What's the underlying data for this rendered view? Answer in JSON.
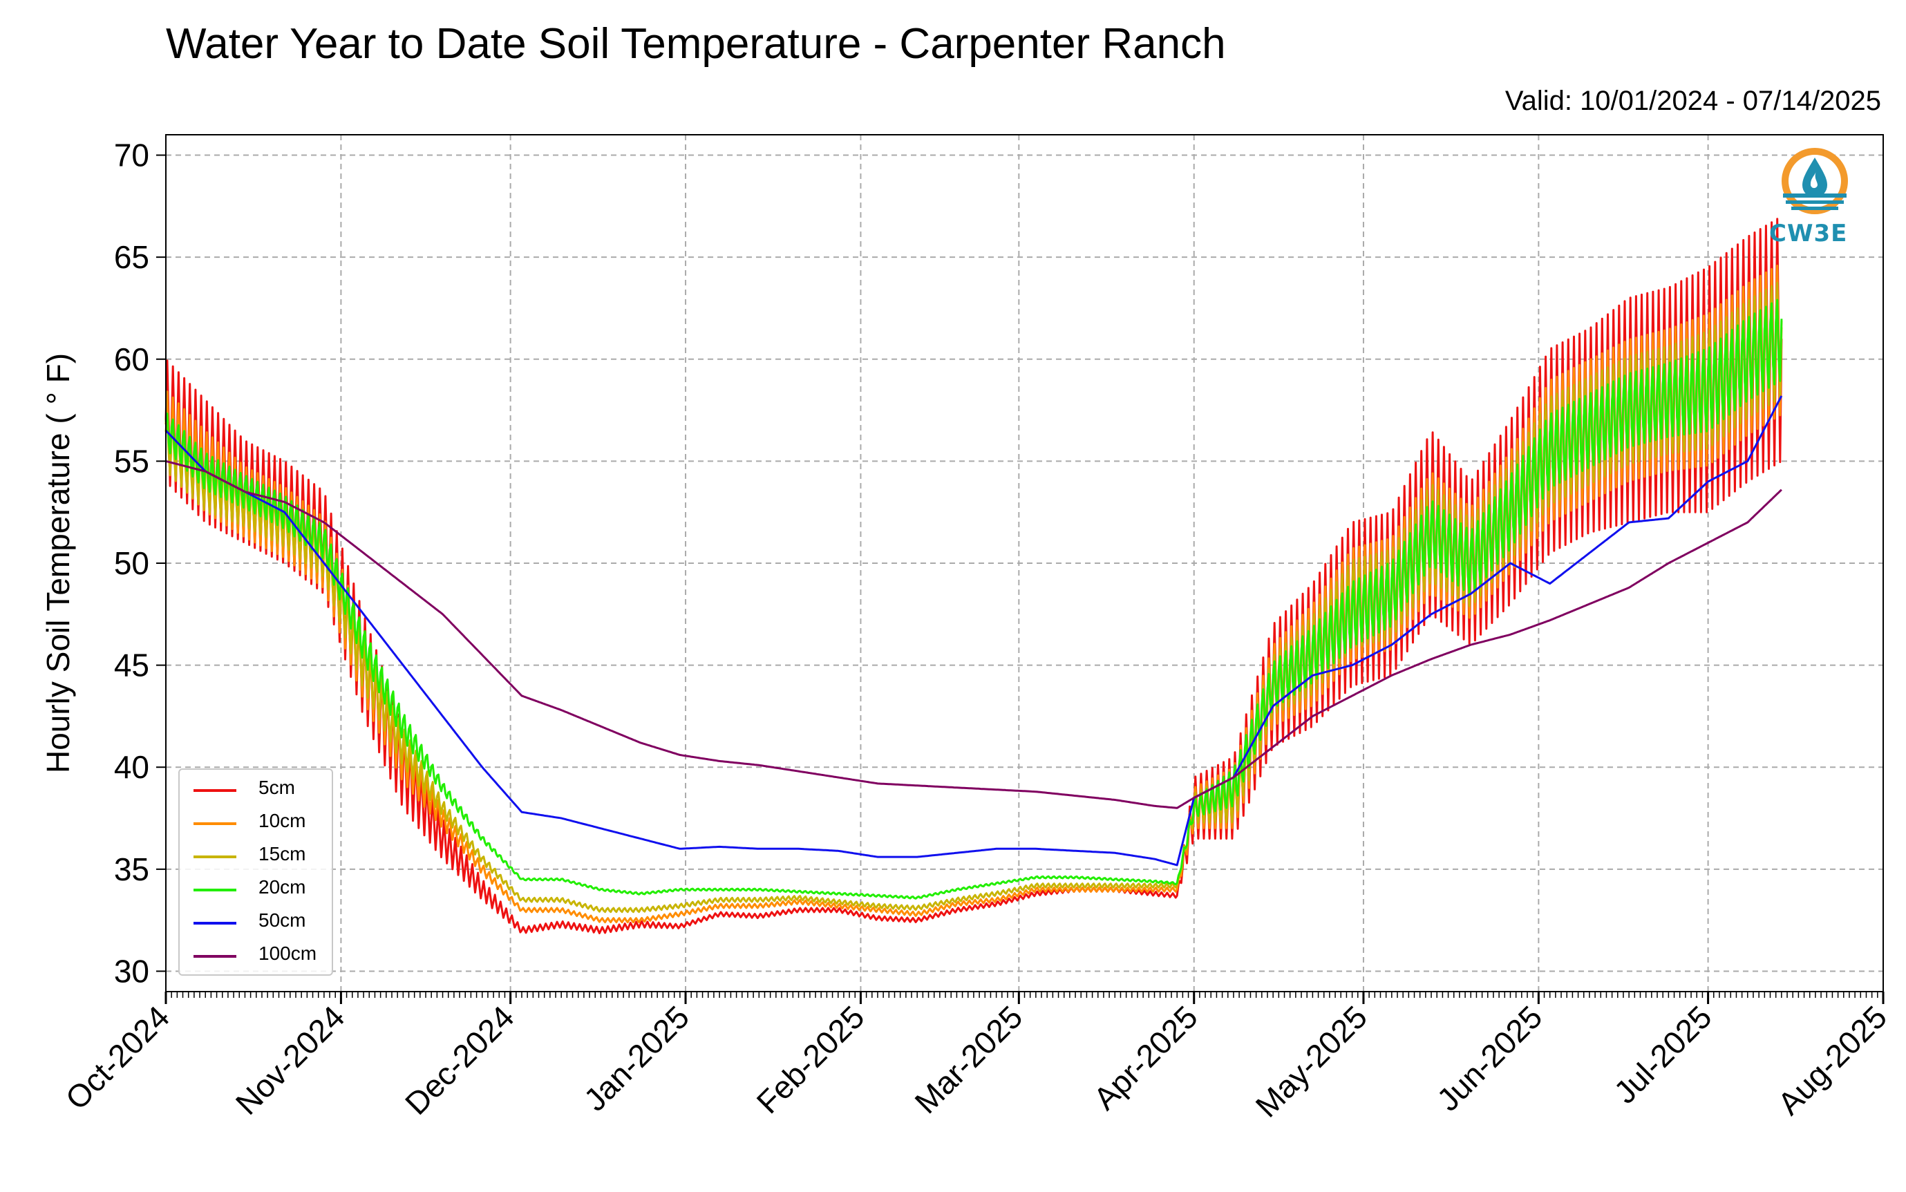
{
  "header": {
    "title": "Water Year to Date Soil Temperature - Carpenter Ranch",
    "valid": "Valid: 10/01/2024 - 07/14/2025"
  },
  "logo": {
    "text": "CW3E",
    "icon": "cw3e-droplet-logo-icon"
  },
  "colors": {
    "5cm": "#ee1111",
    "10cm": "#ff8c00",
    "15cm": "#c8b400",
    "20cm": "#22ee00",
    "50cm": "#1010ee",
    "100cm": "#800060",
    "logo_orange": "#f39a2c",
    "logo_blue": "#1f8fb0"
  },
  "chart_data": {
    "type": "line",
    "title": "Water Year to Date Soil Temperature - Carpenter Ranch",
    "ylabel": "Hourly Soil Temperature ( ° F)",
    "xlabel": "",
    "ylim": [
      29,
      71
    ],
    "yticks": [
      30,
      35,
      40,
      45,
      50,
      55,
      60,
      65,
      70
    ],
    "xlim": [
      "2024-10-01",
      "2025-08-01"
    ],
    "xticks": [
      "Oct-2024",
      "Nov-2024",
      "Dec-2024",
      "Jan-2025",
      "Feb-2025",
      "Mar-2025",
      "Apr-2025",
      "May-2025",
      "Jun-2025",
      "Jul-2025",
      "Aug-2025"
    ],
    "grid": true,
    "legend_position": "lower-left",
    "series": [
      {
        "name": "5cm",
        "x": [
          "2024-10-01",
          "2024-10-08",
          "2024-10-15",
          "2024-10-22",
          "2024-10-29",
          "2024-11-05",
          "2024-11-12",
          "2024-11-19",
          "2024-11-26",
          "2024-12-03",
          "2024-12-10",
          "2024-12-17",
          "2024-12-24",
          "2024-12-31",
          "2025-01-07",
          "2025-01-14",
          "2025-01-21",
          "2025-01-28",
          "2025-02-04",
          "2025-02-11",
          "2025-02-18",
          "2025-02-25",
          "2025-03-04",
          "2025-03-11",
          "2025-03-18",
          "2025-03-25",
          "2025-03-29",
          "2025-04-01",
          "2025-04-08",
          "2025-04-15",
          "2025-04-22",
          "2025-04-29",
          "2025-05-06",
          "2025-05-13",
          "2025-05-20",
          "2025-05-27",
          "2025-06-03",
          "2025-06-10",
          "2025-06-17",
          "2025-06-24",
          "2025-07-01",
          "2025-07-08",
          "2025-07-14"
        ],
        "y": [
          57.0,
          55.0,
          53.5,
          52.5,
          51.0,
          45.0,
          40.0,
          36.5,
          34.0,
          32.0,
          32.3,
          32.0,
          32.3,
          32.2,
          32.8,
          32.7,
          33.0,
          33.0,
          32.6,
          32.5,
          33.0,
          33.3,
          33.8,
          34.0,
          34.0,
          33.8,
          33.7,
          38.0,
          38.5,
          44.0,
          45.5,
          48.0,
          48.5,
          52.0,
          50.0,
          52.5,
          55.5,
          56.5,
          57.5,
          58.0,
          58.5,
          60.0,
          61.0
        ],
        "daily_range": [
          6.0,
          6.0,
          5.0,
          5.0,
          5.0,
          5.0,
          4.0,
          2.0,
          1.0,
          0.3,
          0.3,
          0.3,
          0.3,
          0.2,
          0.2,
          0.2,
          0.2,
          0.2,
          0.2,
          0.2,
          0.2,
          0.2,
          0.2,
          0.2,
          0.2,
          0.2,
          0.2,
          3.0,
          4.0,
          6.0,
          7.0,
          8.0,
          8.0,
          9.0,
          8.0,
          9.0,
          10.0,
          10.0,
          11.0,
          11.0,
          12.0,
          12.0,
          12.0
        ]
      },
      {
        "name": "10cm",
        "x": [
          "2024-10-01",
          "2024-10-08",
          "2024-10-15",
          "2024-10-22",
          "2024-10-29",
          "2024-11-05",
          "2024-11-12",
          "2024-11-19",
          "2024-11-26",
          "2024-12-03",
          "2024-12-10",
          "2024-12-17",
          "2024-12-24",
          "2024-12-31",
          "2025-01-07",
          "2025-01-14",
          "2025-01-21",
          "2025-01-28",
          "2025-02-04",
          "2025-02-11",
          "2025-02-18",
          "2025-02-25",
          "2025-03-04",
          "2025-03-11",
          "2025-03-18",
          "2025-03-25",
          "2025-03-29",
          "2025-04-01",
          "2025-04-08",
          "2025-04-15",
          "2025-04-22",
          "2025-04-29",
          "2025-05-06",
          "2025-05-13",
          "2025-05-20",
          "2025-05-27",
          "2025-06-03",
          "2025-06-10",
          "2025-06-17",
          "2025-06-24",
          "2025-07-01",
          "2025-07-08",
          "2025-07-14"
        ],
        "y": [
          56.5,
          54.5,
          53.0,
          52.0,
          50.5,
          45.0,
          40.5,
          37.5,
          35.0,
          33.0,
          33.0,
          32.5,
          32.5,
          32.8,
          33.2,
          33.2,
          33.4,
          33.2,
          33.0,
          32.8,
          33.3,
          33.5,
          34.0,
          34.0,
          34.0,
          34.0,
          34.0,
          38.0,
          38.5,
          44.0,
          45.5,
          48.0,
          48.5,
          51.5,
          50.0,
          52.5,
          55.5,
          56.5,
          57.5,
          58.0,
          58.5,
          60.0,
          61.0
        ],
        "daily_range": [
          4.0,
          4.0,
          3.5,
          3.5,
          3.5,
          3.5,
          2.5,
          1.0,
          0.5,
          0.2,
          0.2,
          0.2,
          0.2,
          0.2,
          0.2,
          0.2,
          0.2,
          0.2,
          0.2,
          0.2,
          0.2,
          0.2,
          0.2,
          0.2,
          0.2,
          0.2,
          0.2,
          2.0,
          3.0,
          4.0,
          5.0,
          5.5,
          5.5,
          6.0,
          5.5,
          6.0,
          7.0,
          7.0,
          7.0,
          7.0,
          7.5,
          7.5,
          7.5
        ]
      },
      {
        "name": "15cm",
        "x": [
          "2024-10-01",
          "2024-10-08",
          "2024-10-15",
          "2024-10-22",
          "2024-10-29",
          "2024-11-05",
          "2024-11-12",
          "2024-11-19",
          "2024-11-26",
          "2024-12-03",
          "2024-12-10",
          "2024-12-17",
          "2024-12-24",
          "2024-12-31",
          "2025-01-07",
          "2025-01-14",
          "2025-01-21",
          "2025-01-28",
          "2025-02-04",
          "2025-02-11",
          "2025-02-18",
          "2025-02-25",
          "2025-03-04",
          "2025-03-11",
          "2025-03-18",
          "2025-03-25",
          "2025-03-29",
          "2025-04-01",
          "2025-04-08",
          "2025-04-15",
          "2025-04-22",
          "2025-04-29",
          "2025-05-06",
          "2025-05-13",
          "2025-05-20",
          "2025-05-27",
          "2025-06-03",
          "2025-06-10",
          "2025-06-17",
          "2025-06-24",
          "2025-07-01",
          "2025-07-08",
          "2025-07-14"
        ],
        "y": [
          56.0,
          54.0,
          53.0,
          52.0,
          50.5,
          45.0,
          41.0,
          38.0,
          35.5,
          33.5,
          33.5,
          33.0,
          33.0,
          33.2,
          33.5,
          33.5,
          33.6,
          33.4,
          33.2,
          33.1,
          33.5,
          33.8,
          34.2,
          34.2,
          34.2,
          34.2,
          34.2,
          38.0,
          38.5,
          44.0,
          45.5,
          48.0,
          48.5,
          51.5,
          50.0,
          52.5,
          55.5,
          56.5,
          57.5,
          58.0,
          58.5,
          60.0,
          61.0
        ],
        "daily_range": [
          3.0,
          3.0,
          2.5,
          2.5,
          2.5,
          2.5,
          2.0,
          0.8,
          0.4,
          0.2,
          0.2,
          0.2,
          0.2,
          0.2,
          0.2,
          0.2,
          0.2,
          0.2,
          0.2,
          0.2,
          0.2,
          0.2,
          0.2,
          0.2,
          0.2,
          0.2,
          0.2,
          1.5,
          2.5,
          3.0,
          4.0,
          4.5,
          4.5,
          5.0,
          4.5,
          5.0,
          5.5,
          5.5,
          5.5,
          5.5,
          6.0,
          6.0,
          6.0
        ]
      },
      {
        "name": "20cm",
        "x": [
          "2024-10-01",
          "2024-10-08",
          "2024-10-15",
          "2024-10-22",
          "2024-10-29",
          "2024-11-05",
          "2024-11-12",
          "2024-11-19",
          "2024-11-26",
          "2024-12-03",
          "2024-12-10",
          "2024-12-17",
          "2024-12-24",
          "2024-12-31",
          "2025-01-07",
          "2025-01-14",
          "2025-01-21",
          "2025-01-28",
          "2025-02-04",
          "2025-02-11",
          "2025-02-18",
          "2025-02-25",
          "2025-03-04",
          "2025-03-11",
          "2025-03-18",
          "2025-03-25",
          "2025-03-29",
          "2025-04-01",
          "2025-04-08",
          "2025-04-15",
          "2025-04-22",
          "2025-04-29",
          "2025-05-06",
          "2025-05-13",
          "2025-05-20",
          "2025-05-27",
          "2025-06-03",
          "2025-06-10",
          "2025-06-17",
          "2025-06-24",
          "2025-07-01",
          "2025-07-08",
          "2025-07-14"
        ],
        "y": [
          56.5,
          54.5,
          53.5,
          52.5,
          51.0,
          46.0,
          42.0,
          39.0,
          36.5,
          34.5,
          34.5,
          34.0,
          33.8,
          34.0,
          34.0,
          34.0,
          33.9,
          33.8,
          33.7,
          33.6,
          34.0,
          34.3,
          34.6,
          34.6,
          34.5,
          34.4,
          34.3,
          38.0,
          39.0,
          44.0,
          45.5,
          47.5,
          48.5,
          51.5,
          50.0,
          52.5,
          55.5,
          56.5,
          57.5,
          58.0,
          58.5,
          60.0,
          61.0
        ],
        "daily_range": [
          2.0,
          2.0,
          1.8,
          1.8,
          1.8,
          1.8,
          1.5,
          0.6,
          0.3,
          0.1,
          0.1,
          0.1,
          0.1,
          0.1,
          0.1,
          0.1,
          0.1,
          0.1,
          0.1,
          0.1,
          0.1,
          0.1,
          0.1,
          0.1,
          0.1,
          0.1,
          0.1,
          1.0,
          2.0,
          2.5,
          3.0,
          3.5,
          3.5,
          3.5,
          3.5,
          4.0,
          4.0,
          4.0,
          4.0,
          4.0,
          4.5,
          4.5,
          4.5
        ]
      },
      {
        "name": "50cm",
        "x": [
          "2024-10-01",
          "2024-10-08",
          "2024-10-15",
          "2024-10-22",
          "2024-10-29",
          "2024-11-05",
          "2024-11-12",
          "2024-11-19",
          "2024-11-26",
          "2024-12-03",
          "2024-12-10",
          "2024-12-17",
          "2024-12-24",
          "2024-12-31",
          "2025-01-07",
          "2025-01-14",
          "2025-01-21",
          "2025-01-28",
          "2025-02-04",
          "2025-02-11",
          "2025-02-18",
          "2025-02-25",
          "2025-03-04",
          "2025-03-11",
          "2025-03-18",
          "2025-03-25",
          "2025-03-29",
          "2025-04-01",
          "2025-04-08",
          "2025-04-15",
          "2025-04-22",
          "2025-04-29",
          "2025-05-06",
          "2025-05-13",
          "2025-05-20",
          "2025-05-27",
          "2025-06-03",
          "2025-06-10",
          "2025-06-17",
          "2025-06-24",
          "2025-07-01",
          "2025-07-08",
          "2025-07-14"
        ],
        "y": [
          56.5,
          54.5,
          53.5,
          52.5,
          50.0,
          47.5,
          45.0,
          42.5,
          40.0,
          37.8,
          37.5,
          37.0,
          36.5,
          36.0,
          36.1,
          36.0,
          36.0,
          35.9,
          35.6,
          35.6,
          35.8,
          36.0,
          36.0,
          35.9,
          35.8,
          35.5,
          35.2,
          38.5,
          39.5,
          43.0,
          44.5,
          45.0,
          46.0,
          47.5,
          48.5,
          50.0,
          49.0,
          50.5,
          52.0,
          52.2,
          54.0,
          55.0,
          58.2
        ],
        "daily_range": [
          0,
          0,
          0,
          0,
          0,
          0,
          0,
          0,
          0,
          0,
          0,
          0,
          0,
          0,
          0,
          0,
          0,
          0,
          0,
          0,
          0,
          0,
          0,
          0,
          0,
          0,
          0,
          0,
          0,
          0,
          0,
          0,
          0,
          0,
          0,
          0,
          0,
          0,
          0,
          0,
          0,
          0,
          0
        ]
      },
      {
        "name": "100cm",
        "x": [
          "2024-10-01",
          "2024-10-08",
          "2024-10-15",
          "2024-10-22",
          "2024-10-29",
          "2024-11-05",
          "2024-11-12",
          "2024-11-19",
          "2024-11-26",
          "2024-12-03",
          "2024-12-10",
          "2024-12-17",
          "2024-12-24",
          "2024-12-31",
          "2025-01-07",
          "2025-01-14",
          "2025-01-21",
          "2025-01-28",
          "2025-02-04",
          "2025-02-11",
          "2025-02-18",
          "2025-02-25",
          "2025-03-04",
          "2025-03-11",
          "2025-03-18",
          "2025-03-25",
          "2025-03-29",
          "2025-04-01",
          "2025-04-08",
          "2025-04-15",
          "2025-04-22",
          "2025-04-29",
          "2025-05-06",
          "2025-05-13",
          "2025-05-20",
          "2025-05-27",
          "2025-06-03",
          "2025-06-10",
          "2025-06-17",
          "2025-06-24",
          "2025-07-01",
          "2025-07-08",
          "2025-07-14"
        ],
        "y": [
          55.0,
          54.5,
          53.5,
          53.0,
          52.0,
          50.5,
          49.0,
          47.5,
          45.5,
          43.5,
          42.8,
          42.0,
          41.2,
          40.6,
          40.3,
          40.1,
          39.8,
          39.5,
          39.2,
          39.1,
          39.0,
          38.9,
          38.8,
          38.6,
          38.4,
          38.1,
          38.0,
          38.5,
          39.5,
          41.0,
          42.5,
          43.5,
          44.5,
          45.3,
          46.0,
          46.5,
          47.2,
          48.0,
          48.8,
          50.0,
          51.0,
          52.0,
          53.6
        ],
        "daily_range": [
          0,
          0,
          0,
          0,
          0,
          0,
          0,
          0,
          0,
          0,
          0,
          0,
          0,
          0,
          0,
          0,
          0,
          0,
          0,
          0,
          0,
          0,
          0,
          0,
          0,
          0,
          0,
          0,
          0,
          0,
          0,
          0,
          0,
          0,
          0,
          0,
          0,
          0,
          0,
          0,
          0,
          0,
          0
        ]
      }
    ]
  }
}
